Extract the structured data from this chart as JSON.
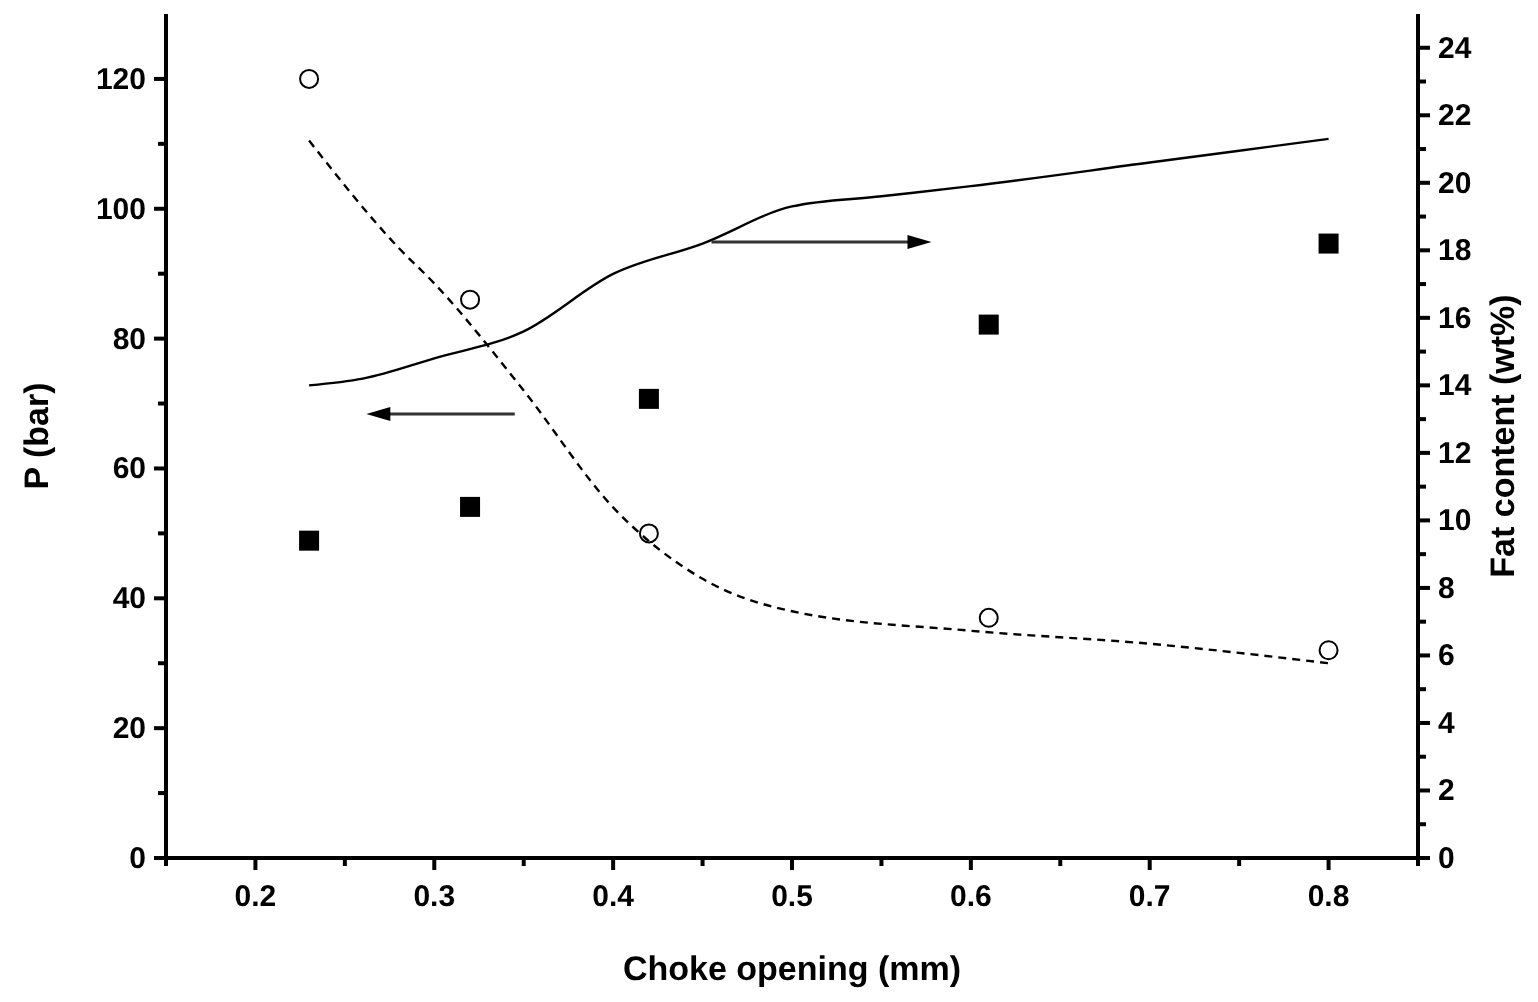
{
  "chart_data": {
    "type": "scatter",
    "xlabel": "Choke opening (mm)",
    "ylabel": "P (bar)",
    "y2label": "Fat content (wt%)",
    "xlim": [
      0.15,
      0.85
    ],
    "ylim": [
      0,
      130
    ],
    "y2lim": [
      0,
      25
    ],
    "xticks": [
      {
        "value": 0.15,
        "label": null
      },
      0.2,
      {
        "value": 0.25,
        "label": null
      },
      0.3,
      {
        "value": 0.35,
        "label": null
      },
      0.4,
      {
        "value": 0.45,
        "label": null
      },
      0.5,
      {
        "value": 0.55,
        "label": null
      },
      0.6,
      {
        "value": 0.65,
        "label": null
      },
      0.7,
      {
        "value": 0.75,
        "label": null
      },
      0.8,
      {
        "value": 0.85,
        "label": null
      }
    ],
    "yticks": [
      0,
      {
        "value": 10,
        "label": null
      },
      20,
      {
        "value": 30,
        "label": null
      },
      40,
      {
        "value": 50,
        "label": null
      },
      60,
      {
        "value": 70,
        "label": null
      },
      80,
      {
        "value": 90,
        "label": null
      },
      100,
      {
        "value": 110,
        "label": null
      },
      120
    ],
    "y2ticks": [
      0,
      {
        "value": 1,
        "label": null
      },
      2,
      {
        "value": 3,
        "label": null
      },
      4,
      {
        "value": 5,
        "label": null
      },
      6,
      {
        "value": 7,
        "label": null
      },
      8,
      {
        "value": 9,
        "label": null
      },
      10,
      {
        "value": 11,
        "label": null
      },
      12,
      {
        "value": 13,
        "label": null
      },
      14,
      {
        "value": 15,
        "label": null
      },
      16,
      {
        "value": 17,
        "label": null
      },
      18,
      {
        "value": 19,
        "label": null
      },
      20,
      {
        "value": 21,
        "label": null
      },
      22,
      {
        "value": 23,
        "label": null
      },
      24
    ],
    "grid": false,
    "series": [
      {
        "marker": "circle",
        "axis": "y",
        "color": "#000000",
        "x": [
          0.23,
          0.32,
          0.42,
          0.61,
          0.8
        ],
        "values": [
          120,
          86,
          50,
          37,
          32
        ]
      },
      {
        "type": "line",
        "line_style": "dashed",
        "axis": "y",
        "color": "#000000",
        "x": [
          0.23,
          0.28,
          0.3,
          0.35,
          0.4,
          0.45,
          0.5,
          0.6,
          0.7,
          0.8
        ],
        "values": [
          110.5,
          94,
          88.5,
          72,
          54,
          43,
          38,
          35,
          33,
          30
        ]
      },
      {
        "marker": "square",
        "axis": "y2",
        "color": "#000000",
        "x": [
          0.23,
          0.32,
          0.42,
          0.61,
          0.8
        ],
        "values": [
          9.4,
          10.4,
          13.6,
          15.8,
          18.2
        ]
      },
      {
        "type": "line",
        "line_style": "solid",
        "axis": "y2",
        "color": "#000000",
        "x": [
          0.23,
          0.26,
          0.3,
          0.35,
          0.4,
          0.45,
          0.5,
          0.55,
          0.6,
          0.7,
          0.8
        ],
        "values": [
          14.0,
          14.2,
          14.8,
          15.6,
          17.3,
          18.2,
          19.3,
          19.6,
          19.9,
          20.6,
          21.3
        ]
      }
    ]
  }
}
